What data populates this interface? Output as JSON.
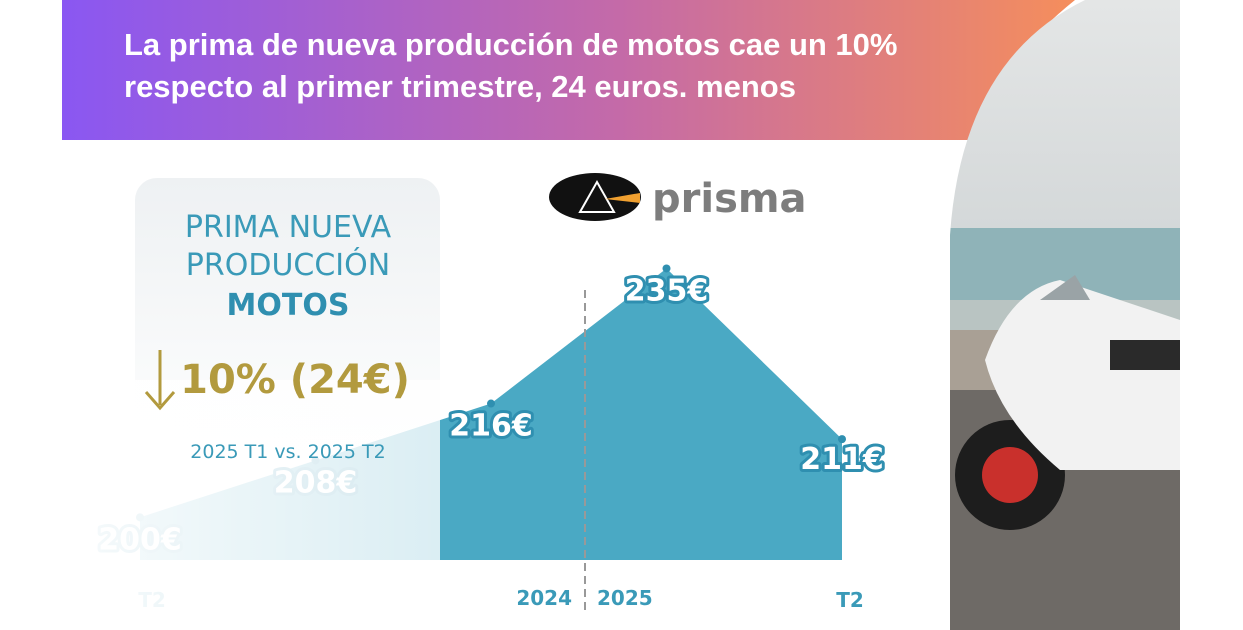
{
  "header": {
    "title": "La prima de nueva producción de motos cae un 10% respecto al primer trimestre, 24 euros. menos"
  },
  "logo": {
    "text": "prisma"
  },
  "card": {
    "line1": "PRIMA NUEVA",
    "line2": "PRODUCCIÓN",
    "line3": "MOTOS",
    "change": "10% (24€)",
    "comparison": "2025 T1 vs. 2025 T2"
  },
  "chart_data": {
    "type": "area",
    "categories": [
      "T2",
      null,
      null,
      null,
      "T2"
    ],
    "values": [
      200,
      208,
      216,
      235,
      211
    ],
    "value_labels": [
      "200€",
      "208€",
      "216€",
      "235€",
      "211€"
    ],
    "color": "#4aa9c4",
    "ylim": [
      194,
      239
    ],
    "annotations": [
      "2024",
      "2025"
    ]
  }
}
